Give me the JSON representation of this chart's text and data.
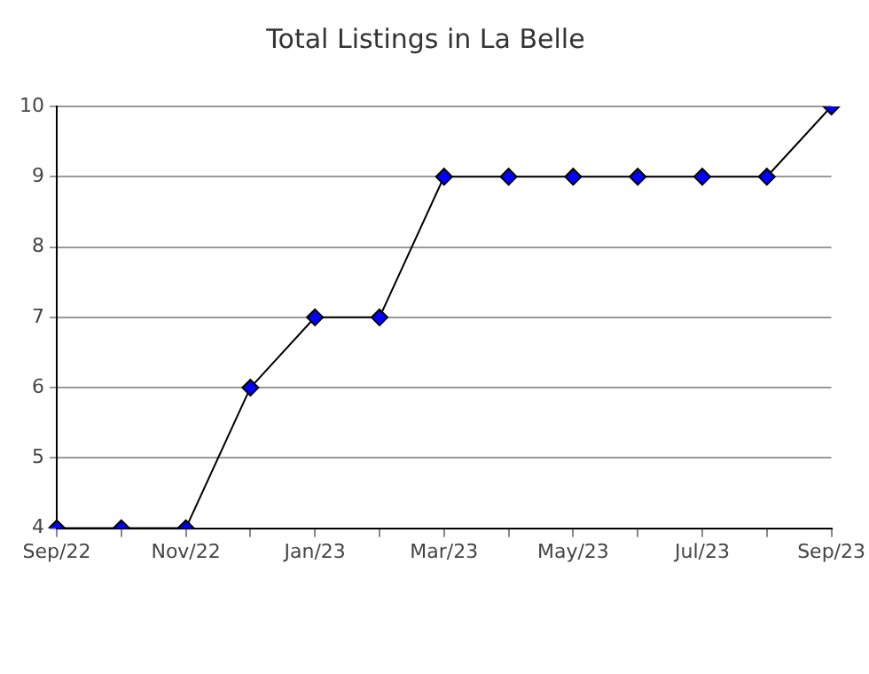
{
  "chart_data": {
    "type": "line",
    "title": "Total Listings in La Belle",
    "categories": [
      "Sep/22",
      null,
      "Nov/22",
      null,
      "Jan/23",
      null,
      "Mar/23",
      null,
      "May/23",
      null,
      "Jul/23",
      null,
      "Sep/23"
    ],
    "series": [
      {
        "color": "#0000ff",
        "values": [
          4,
          4,
          4,
          6,
          7,
          7,
          9,
          9,
          9,
          9,
          9,
          9,
          10
        ]
      }
    ],
    "ylim": [
      4,
      10
    ],
    "yticks": [
      4,
      5,
      6,
      7,
      8,
      9,
      10
    ],
    "grid": "y",
    "marker": "diamond",
    "line_style": "solid",
    "legend": false
  }
}
